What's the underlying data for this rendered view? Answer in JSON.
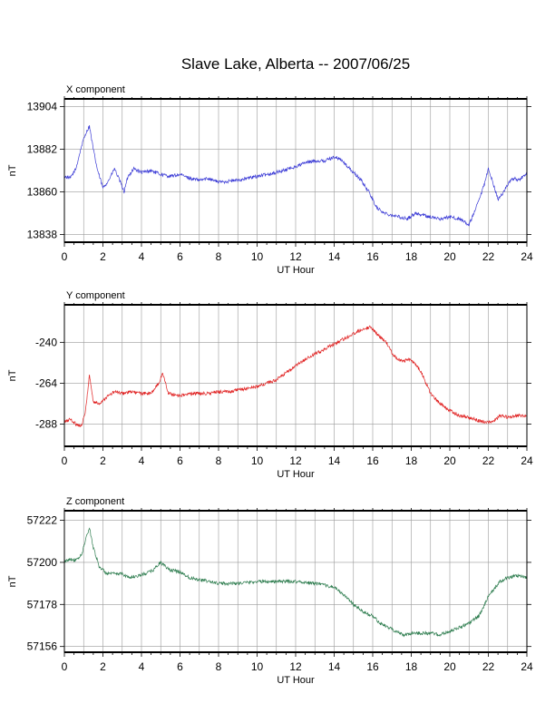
{
  "page": {
    "title": "Slave Lake, Alberta -- 2007/06/25"
  },
  "chart_data": [
    {
      "type": "line",
      "title": "X component",
      "xlabel": "UT Hour",
      "ylabel": "nT",
      "xlim": [
        0,
        24
      ],
      "ylim": [
        13834,
        13908
      ],
      "x_ticks": [
        "0",
        "2",
        "4",
        "6",
        "8",
        "10",
        "12",
        "14",
        "16",
        "18",
        "20",
        "22",
        "24"
      ],
      "y_ticks": [
        "13838",
        "13860",
        "13882",
        "13904"
      ],
      "grid": true,
      "color": "#3b3bd6",
      "series": [
        {
          "x": [
            0,
            0.3,
            0.6,
            0.9,
            1.1,
            1.3,
            1.5,
            1.7,
            2.0,
            2.3,
            2.6,
            2.9,
            3.1,
            3.3,
            3.6,
            4.0,
            4.5,
            5.0,
            5.5,
            6.0,
            6.5,
            7.0,
            7.5,
            8.0,
            9.0,
            10.0,
            11.0,
            12.0,
            12.5,
            13.0,
            13.5,
            14.0,
            14.3,
            14.6,
            15.0,
            15.4,
            15.8,
            16.2,
            16.6,
            17.0,
            17.4,
            17.8,
            18.2,
            18.6,
            19.0,
            19.5,
            20.0,
            20.5,
            21.0,
            21.3,
            21.6,
            21.8,
            22.0,
            22.2,
            22.5,
            22.8,
            23.0,
            23.3,
            23.6,
            24.0
          ],
          "y": [
            13868,
            13867,
            13872,
            13884,
            13890,
            13894,
            13882,
            13872,
            13862,
            13866,
            13872,
            13865,
            13860,
            13868,
            13872,
            13870,
            13871,
            13869,
            13868,
            13869,
            13867,
            13866,
            13867,
            13865,
            13866,
            13868,
            13870,
            13873,
            13875,
            13876,
            13876,
            13878,
            13877,
            13874,
            13870,
            13866,
            13860,
            13852,
            13849,
            13848,
            13847,
            13846,
            13849,
            13848,
            13847,
            13846,
            13847,
            13846,
            13843,
            13850,
            13858,
            13864,
            13872,
            13866,
            13856,
            13860,
            13864,
            13867,
            13866,
            13870
          ]
        }
      ]
    },
    {
      "type": "line",
      "title": "Y component",
      "xlabel": "UT Hour",
      "ylabel": "nT",
      "xlim": [
        0,
        24
      ],
      "ylim": [
        -301,
        -218
      ],
      "x_ticks": [
        "0",
        "2",
        "4",
        "6",
        "8",
        "10",
        "12",
        "14",
        "16",
        "18",
        "20",
        "22",
        "24"
      ],
      "y_ticks": [
        "-240",
        "-264",
        "-288"
      ],
      "grid": true,
      "color": "#e02020",
      "series": [
        {
          "x": [
            0,
            0.3,
            0.6,
            0.9,
            1.1,
            1.3,
            1.5,
            1.8,
            2.2,
            2.6,
            3.0,
            3.5,
            4.0,
            4.5,
            4.9,
            5.1,
            5.4,
            5.8,
            6.2,
            6.6,
            7.0,
            7.5,
            8.0,
            8.5,
            9.0,
            9.5,
            10.0,
            10.5,
            11.0,
            11.5,
            12.0,
            12.5,
            13.0,
            13.5,
            14.0,
            14.5,
            15.0,
            15.5,
            15.9,
            16.3,
            16.7,
            17.1,
            17.5,
            18.0,
            18.5,
            19.0,
            19.5,
            20.0,
            20.5,
            21.0,
            21.5,
            22.0,
            22.3,
            22.6,
            23.0,
            23.5,
            24.0
          ],
          "y": [
            -287,
            -285,
            -288,
            -289,
            -280,
            -259,
            -275,
            -276,
            -272,
            -269,
            -270,
            -269,
            -270,
            -270,
            -264,
            -258,
            -270,
            -271,
            -271,
            -270,
            -270,
            -270,
            -269,
            -269,
            -268,
            -267,
            -266,
            -264,
            -262,
            -258,
            -254,
            -250,
            -247,
            -244,
            -241,
            -238,
            -235,
            -232,
            -231,
            -236,
            -240,
            -248,
            -251,
            -250,
            -257,
            -270,
            -276,
            -280,
            -283,
            -284,
            -286,
            -287,
            -286,
            -283,
            -284,
            -283,
            -283
          ]
        }
      ]
    },
    {
      "type": "line",
      "title": "Z component",
      "xlabel": "UT Hour",
      "ylabel": "nT",
      "xlim": [
        0,
        24
      ],
      "ylim": [
        57153,
        57227
      ],
      "x_ticks": [
        "0",
        "2",
        "4",
        "6",
        "8",
        "10",
        "12",
        "14",
        "16",
        "18",
        "20",
        "22",
        "24"
      ],
      "y_ticks": [
        "57156",
        "57178",
        "57200",
        "57222"
      ],
      "grid": true,
      "color": "#2e7d4f",
      "series": [
        {
          "x": [
            0,
            0.3,
            0.6,
            0.9,
            1.1,
            1.3,
            1.5,
            1.8,
            2.2,
            2.6,
            3.0,
            3.4,
            3.8,
            4.2,
            4.6,
            5.0,
            5.2,
            5.5,
            6.0,
            6.5,
            7.0,
            7.5,
            8.0,
            9.0,
            10.0,
            11.0,
            12.0,
            13.0,
            14.0,
            14.5,
            15.0,
            15.5,
            16.0,
            16.4,
            16.8,
            17.2,
            17.6,
            18.0,
            18.5,
            19.0,
            19.5,
            20.0,
            20.5,
            21.0,
            21.5,
            21.8,
            22.0,
            22.3,
            22.6,
            23.0,
            23.5,
            24.0
          ],
          "y": [
            57200,
            57202,
            57201,
            57204,
            57212,
            57218,
            57208,
            57198,
            57194,
            57194,
            57194,
            57192,
            57193,
            57194,
            57196,
            57200,
            57198,
            57196,
            57195,
            57192,
            57191,
            57190,
            57189,
            57189,
            57190,
            57190,
            57190,
            57189,
            57187,
            57183,
            57178,
            57174,
            57172,
            57168,
            57166,
            57164,
            57162,
            57163,
            57163,
            57163,
            57162,
            57164,
            57166,
            57168,
            57172,
            57178,
            57182,
            57186,
            57190,
            57192,
            57193,
            57192
          ]
        }
      ]
    }
  ]
}
